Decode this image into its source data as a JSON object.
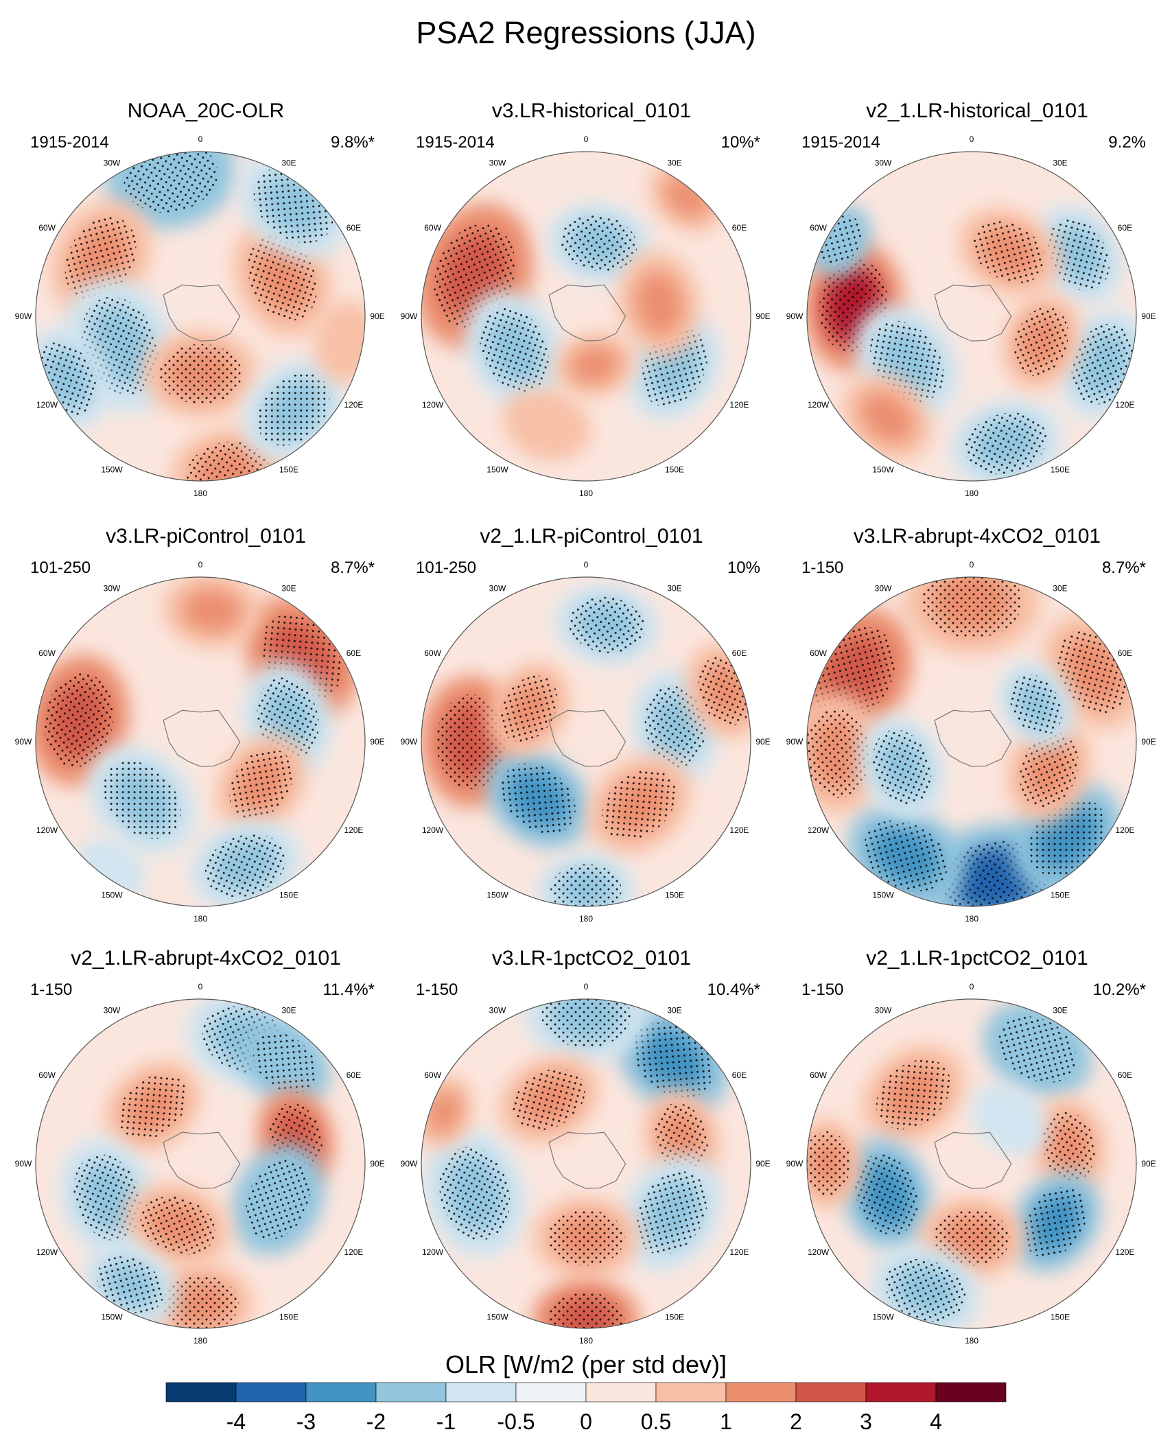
{
  "chart_data": {
    "type": "heatmap",
    "projection": "south-polar-stereographic",
    "title": "PSA2 Regressions (JJA)",
    "variable": "OLR",
    "colorbar_label": "OLR [W/m2 (per std dev)]",
    "colorbar": {
      "levels": [
        "-4",
        "-3",
        "-2",
        "-1",
        "-0.5",
        "0",
        "0.5",
        "1",
        "2",
        "3",
        "4"
      ],
      "colors": [
        "#073a70",
        "#2064ae",
        "#4393c3",
        "#92c5de",
        "#d1e5f0",
        "#eef3f6",
        "#fbe6de",
        "#f8c1a7",
        "#eb8f6f",
        "#d15848",
        "#b1182b",
        "#6a0120"
      ]
    },
    "longitude_labels": [
      "0",
      "30E",
      "60E",
      "90E",
      "120E",
      "150E",
      "180",
      "150W",
      "120W",
      "90W",
      "60W",
      "30W"
    ],
    "panels": [
      {
        "title": "NOAA_20C-OLR",
        "period": "1915-2014",
        "variance_explained": "9.8%*",
        "blobs": [
          {
            "lon": 348,
            "colat": 0.86,
            "value": -2.0,
            "size": 0.32
          },
          {
            "lon": 300,
            "colat": 0.7,
            "value": 1.8,
            "size": 0.3
          },
          {
            "lon": 250,
            "colat": 0.52,
            "value": -1.8,
            "size": 0.34
          },
          {
            "lon": 245,
            "colat": 0.9,
            "value": -1.6,
            "size": 0.26
          },
          {
            "lon": 180,
            "colat": 0.35,
            "value": 1.5,
            "size": 0.28
          },
          {
            "lon": 170,
            "colat": 0.96,
            "value": 1.6,
            "size": 0.28
          },
          {
            "lon": 135,
            "colat": 0.8,
            "value": -1.5,
            "size": 0.28
          },
          {
            "lon": 65,
            "colat": 0.55,
            "value": 1.3,
            "size": 0.3
          },
          {
            "lon": 40,
            "colat": 0.88,
            "value": -1.4,
            "size": 0.3
          },
          {
            "lon": 100,
            "colat": 0.9,
            "value": 0.9,
            "size": 0.2
          }
        ]
      },
      {
        "title": "v3.LR-historical_0101",
        "period": "1915-2014",
        "variance_explained": "10%*",
        "blobs": [
          {
            "lon": 290,
            "colat": 0.72,
            "value": 2.2,
            "size": 0.36
          },
          {
            "lon": 245,
            "colat": 0.48,
            "value": -1.5,
            "size": 0.3
          },
          {
            "lon": 10,
            "colat": 0.45,
            "value": -1.2,
            "size": 0.26
          },
          {
            "lon": 40,
            "colat": 0.95,
            "value": 1.0,
            "size": 0.2
          },
          {
            "lon": 120,
            "colat": 0.62,
            "value": -1.6,
            "size": 0.28
          },
          {
            "lon": 80,
            "colat": 0.45,
            "value": 1.0,
            "size": 0.26
          },
          {
            "lon": 170,
            "colat": 0.3,
            "value": 1.0,
            "size": 0.2
          },
          {
            "lon": 200,
            "colat": 0.7,
            "value": 0.8,
            "size": 0.22
          }
        ]
      },
      {
        "title": "v2_1.LR-historical_0101",
        "period": "1915-2014",
        "variance_explained": "9.2%",
        "blobs": [
          {
            "lon": 275,
            "colat": 0.72,
            "value": 3.0,
            "size": 0.32
          },
          {
            "lon": 300,
            "colat": 0.92,
            "value": -2.0,
            "size": 0.18
          },
          {
            "lon": 235,
            "colat": 0.48,
            "value": -1.6,
            "size": 0.3
          },
          {
            "lon": 60,
            "colat": 0.75,
            "value": -1.8,
            "size": 0.26
          },
          {
            "lon": 110,
            "colat": 0.85,
            "value": -1.8,
            "size": 0.28
          },
          {
            "lon": 165,
            "colat": 0.8,
            "value": -1.8,
            "size": 0.28
          },
          {
            "lon": 30,
            "colat": 0.45,
            "value": 1.2,
            "size": 0.26
          },
          {
            "lon": 110,
            "colat": 0.45,
            "value": 1.4,
            "size": 0.24
          },
          {
            "lon": 220,
            "colat": 0.8,
            "value": 1.0,
            "size": 0.24
          }
        ]
      },
      {
        "title": "v3.LR-piControl_0101",
        "period": "101-250",
        "variance_explained": "8.7%*",
        "blobs": [
          {
            "lon": 280,
            "colat": 0.75,
            "value": 2.2,
            "size": 0.32
          },
          {
            "lon": 50,
            "colat": 0.8,
            "value": 2.0,
            "size": 0.32
          },
          {
            "lon": 225,
            "colat": 0.5,
            "value": -1.6,
            "size": 0.3
          },
          {
            "lon": 75,
            "colat": 0.55,
            "value": -1.5,
            "size": 0.28
          },
          {
            "lon": 125,
            "colat": 0.45,
            "value": 1.5,
            "size": 0.26
          },
          {
            "lon": 160,
            "colat": 0.8,
            "value": -1.4,
            "size": 0.28
          },
          {
            "lon": 5,
            "colat": 0.8,
            "value": 1.0,
            "size": 0.24
          },
          {
            "lon": 215,
            "colat": 0.95,
            "value": -1.0,
            "size": 0.18
          }
        ]
      },
      {
        "title": "v2_1.LR-piControl_0101",
        "period": "101-250",
        "variance_explained": "10%",
        "blobs": [
          {
            "lon": 270,
            "colat": 0.7,
            "value": 2.2,
            "size": 0.32
          },
          {
            "lon": 220,
            "colat": 0.45,
            "value": -2.2,
            "size": 0.28
          },
          {
            "lon": 10,
            "colat": 0.72,
            "value": -1.6,
            "size": 0.26
          },
          {
            "lon": 80,
            "colat": 0.55,
            "value": -1.5,
            "size": 0.28
          },
          {
            "lon": 140,
            "colat": 0.5,
            "value": 1.5,
            "size": 0.28
          },
          {
            "lon": 70,
            "colat": 0.9,
            "value": 1.5,
            "size": 0.24
          },
          {
            "lon": 180,
            "colat": 0.9,
            "value": -1.5,
            "size": 0.24
          },
          {
            "lon": 300,
            "colat": 0.4,
            "value": 1.2,
            "size": 0.24
          }
        ]
      },
      {
        "title": "v3.LR-abrupt-4xCO2_0101",
        "period": "1-150",
        "variance_explained": "8.7%*",
        "blobs": [
          {
            "lon": 300,
            "colat": 0.82,
            "value": 2.2,
            "size": 0.34
          },
          {
            "lon": 0,
            "colat": 0.85,
            "value": 1.8,
            "size": 0.34
          },
          {
            "lon": 60,
            "colat": 0.85,
            "value": 1.6,
            "size": 0.3
          },
          {
            "lon": 265,
            "colat": 0.82,
            "value": 1.8,
            "size": 0.3
          },
          {
            "lon": 170,
            "colat": 0.85,
            "value": -3.5,
            "size": 0.36
          },
          {
            "lon": 135,
            "colat": 0.82,
            "value": -2.5,
            "size": 0.3
          },
          {
            "lon": 210,
            "colat": 0.8,
            "value": -2.5,
            "size": 0.3
          },
          {
            "lon": 250,
            "colat": 0.45,
            "value": -1.5,
            "size": 0.26
          },
          {
            "lon": 110,
            "colat": 0.5,
            "value": 1.5,
            "size": 0.26
          },
          {
            "lon": 60,
            "colat": 0.45,
            "value": -1.2,
            "size": 0.22
          }
        ]
      },
      {
        "title": "v2_1.LR-abrupt-4xCO2_0101",
        "period": "1-150",
        "variance_explained": "11.4%*",
        "blobs": [
          {
            "lon": 320,
            "colat": 0.45,
            "value": 1.5,
            "size": 0.26
          },
          {
            "lon": 250,
            "colat": 0.6,
            "value": -1.8,
            "size": 0.3
          },
          {
            "lon": 20,
            "colat": 0.8,
            "value": -1.6,
            "size": 0.3
          },
          {
            "lon": 40,
            "colat": 0.8,
            "value": -2.0,
            "size": 0.24
          },
          {
            "lon": 75,
            "colat": 0.6,
            "value": 2.0,
            "size": 0.24
          },
          {
            "lon": 115,
            "colat": 0.52,
            "value": -2.0,
            "size": 0.28
          },
          {
            "lon": 200,
            "colat": 0.4,
            "value": 1.5,
            "size": 0.26
          },
          {
            "lon": 180,
            "colat": 0.85,
            "value": 1.3,
            "size": 0.26
          },
          {
            "lon": 210,
            "colat": 0.85,
            "value": -1.3,
            "size": 0.24
          }
        ]
      },
      {
        "title": "v3.LR-1pctCO2_0101",
        "period": "1-150",
        "variance_explained": "10.4%*",
        "blobs": [
          {
            "lon": 40,
            "colat": 0.82,
            "value": -2.5,
            "size": 0.3
          },
          {
            "lon": 0,
            "colat": 0.9,
            "value": -1.2,
            "size": 0.3
          },
          {
            "lon": 330,
            "colat": 0.45,
            "value": 1.2,
            "size": 0.26
          },
          {
            "lon": 255,
            "colat": 0.7,
            "value": -1.5,
            "size": 0.32
          },
          {
            "lon": 75,
            "colat": 0.6,
            "value": 1.5,
            "size": 0.24
          },
          {
            "lon": 120,
            "colat": 0.6,
            "value": -1.5,
            "size": 0.3
          },
          {
            "lon": 180,
            "colat": 0.45,
            "value": 1.8,
            "size": 0.26
          },
          {
            "lon": 180,
            "colat": 0.95,
            "value": 2.5,
            "size": 0.26
          },
          {
            "lon": 290,
            "colat": 0.92,
            "value": 1.0,
            "size": 0.18
          }
        ]
      },
      {
        "title": "v2_1.LR-1pctCO2_0101",
        "period": "1-150",
        "variance_explained": "10.2%*",
        "blobs": [
          {
            "lon": 30,
            "colat": 0.8,
            "value": -2.0,
            "size": 0.28
          },
          {
            "lon": 320,
            "colat": 0.55,
            "value": 1.6,
            "size": 0.28
          },
          {
            "lon": 250,
            "colat": 0.55,
            "value": -2.2,
            "size": 0.28
          },
          {
            "lon": 80,
            "colat": 0.6,
            "value": 1.6,
            "size": 0.24
          },
          {
            "lon": 125,
            "colat": 0.62,
            "value": -2.2,
            "size": 0.26
          },
          {
            "lon": 180,
            "colat": 0.45,
            "value": 1.8,
            "size": 0.26
          },
          {
            "lon": 200,
            "colat": 0.82,
            "value": -1.8,
            "size": 0.28
          },
          {
            "lon": 270,
            "colat": 0.88,
            "value": 1.2,
            "size": 0.22
          },
          {
            "lon": 40,
            "colat": 0.35,
            "value": -1.0,
            "size": 0.2
          }
        ]
      }
    ]
  }
}
